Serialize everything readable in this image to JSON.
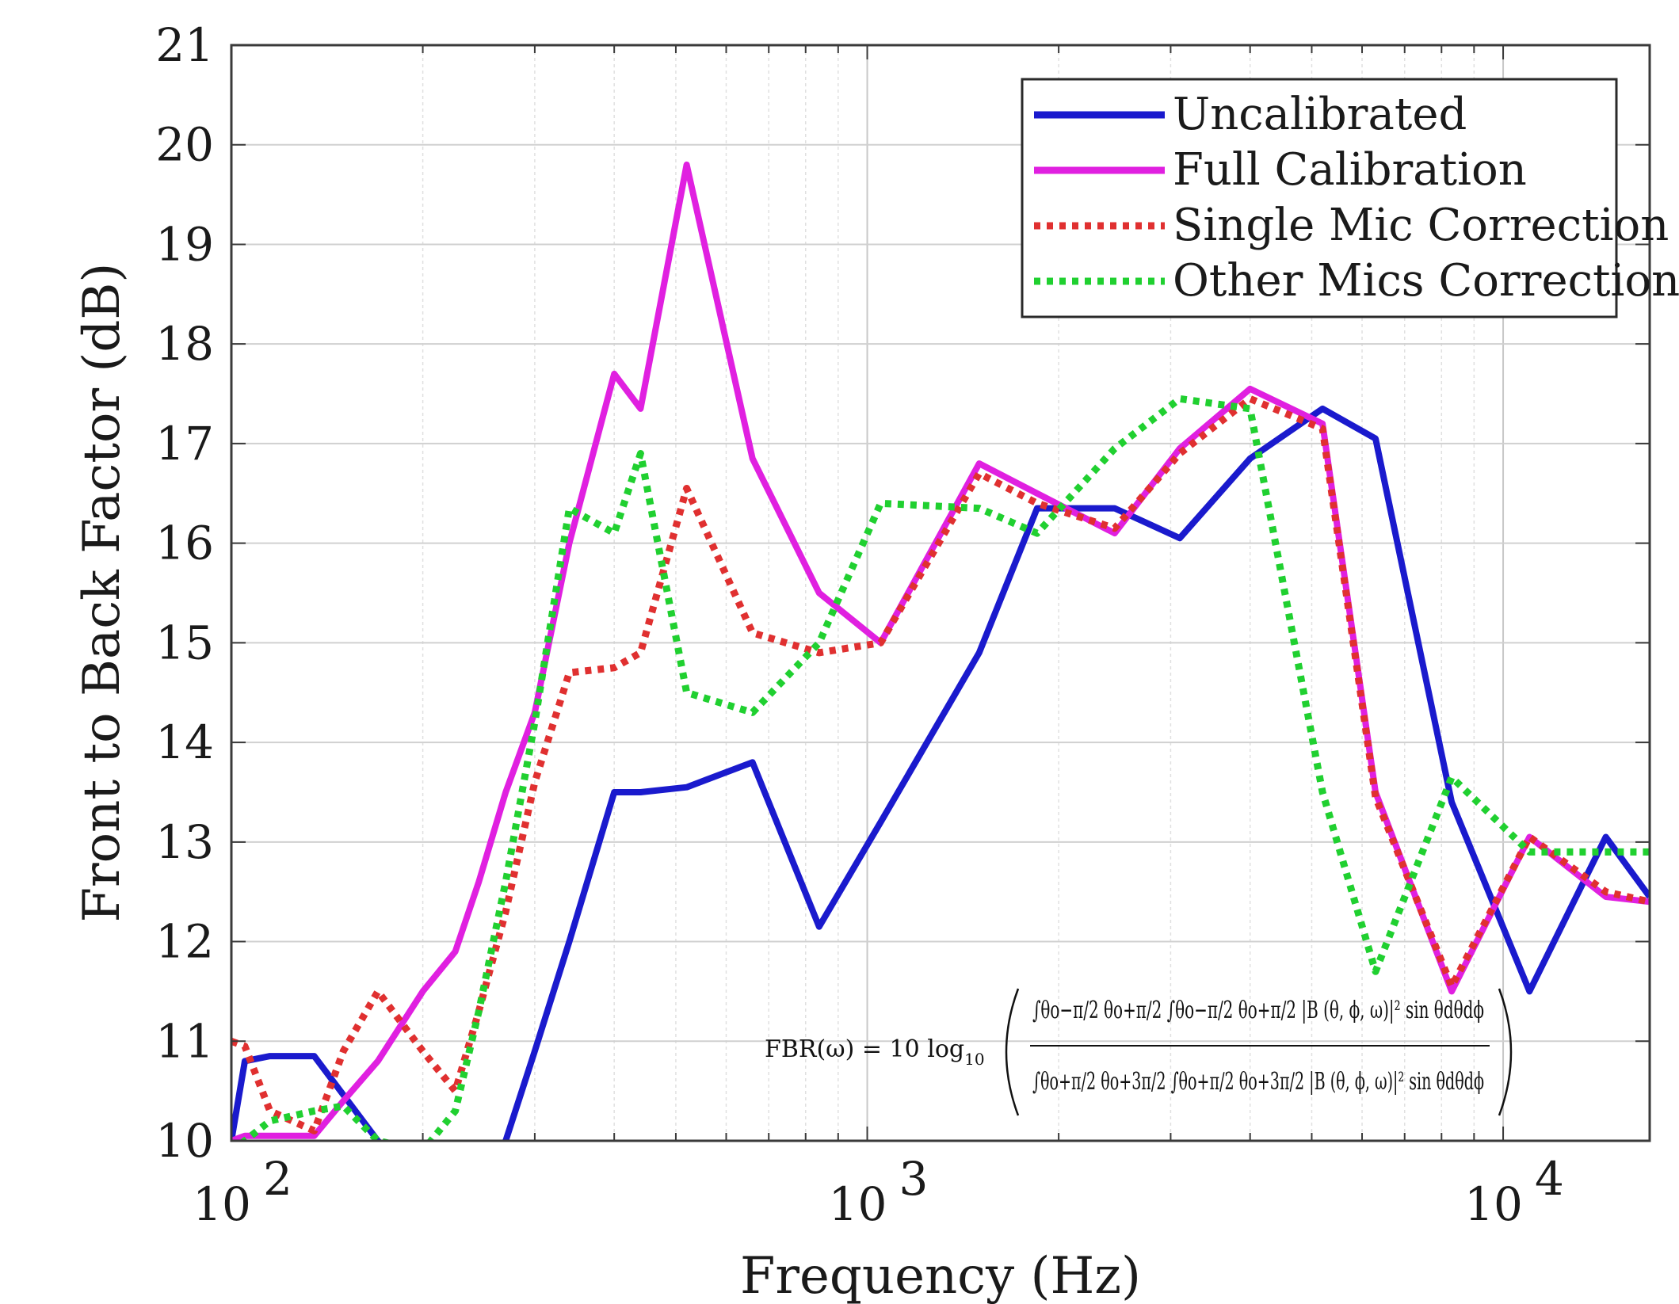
{
  "chart_data": {
    "type": "line",
    "xlabel": "Frequency (Hz)",
    "ylabel": "Front to Back Factor (dB)",
    "xscale": "log",
    "xlim": [
      100,
      17000
    ],
    "ylim": [
      10,
      21
    ],
    "grid": true,
    "legend_position": "top-right",
    "x_ticks": [
      {
        "value": 100,
        "base": "10",
        "exp": "2"
      },
      {
        "value": 1000,
        "base": "10",
        "exp": "3"
      },
      {
        "value": 10000,
        "base": "10",
        "exp": "4"
      }
    ],
    "y_ticks": [
      "10",
      "11",
      "12",
      "13",
      "14",
      "15",
      "16",
      "17",
      "18",
      "19",
      "20",
      "21"
    ],
    "series": [
      {
        "name": "Uncalibrated",
        "color": "#1a1acd",
        "style": "solid",
        "x": [
          100,
          105,
          115,
          135,
          170,
          190,
          205,
          225,
          245,
          270,
          300,
          340,
          400,
          440,
          520,
          660,
          840,
          1050,
          1500,
          1850,
          2450,
          3100,
          4000,
          5200,
          6300,
          8300,
          11000,
          14500,
          17000
        ],
        "y": [
          10.0,
          10.8,
          10.85,
          10.85,
          10.0,
          9.7,
          9.5,
          9.5,
          9.7,
          10.0,
          10.9,
          12.0,
          13.5,
          13.5,
          13.55,
          13.8,
          12.15,
          13.2,
          14.9,
          16.35,
          16.35,
          16.05,
          16.85,
          17.35,
          17.05,
          13.4,
          11.5,
          13.05,
          12.45
        ]
      },
      {
        "name": "Full Calibration",
        "color": "#e020e0",
        "style": "solid",
        "x": [
          100,
          105,
          115,
          135,
          150,
          170,
          200,
          225,
          245,
          270,
          300,
          340,
          400,
          440,
          520,
          660,
          840,
          1050,
          1500,
          1850,
          2450,
          3100,
          4000,
          5200,
          6300,
          8300,
          11000,
          14500,
          17000
        ],
        "y": [
          10.0,
          10.05,
          10.05,
          10.05,
          10.4,
          10.8,
          11.5,
          11.9,
          12.6,
          13.5,
          14.3,
          16.0,
          17.7,
          17.35,
          19.8,
          16.85,
          15.5,
          15.0,
          16.8,
          16.5,
          16.1,
          16.95,
          17.55,
          17.2,
          13.5,
          11.5,
          13.05,
          12.45,
          12.4
        ]
      },
      {
        "name": "Single Mic Correction",
        "color": "#e03030",
        "style": "dotted",
        "x": [
          100,
          105,
          115,
          135,
          150,
          170,
          200,
          225,
          245,
          270,
          300,
          340,
          400,
          440,
          520,
          660,
          840,
          1050,
          1500,
          1850,
          2450,
          3100,
          4000,
          5200,
          6300,
          8300,
          11000,
          14500,
          17000
        ],
        "y": [
          11.0,
          10.95,
          10.3,
          10.1,
          10.9,
          11.5,
          10.9,
          10.5,
          11.3,
          12.3,
          13.6,
          14.7,
          14.75,
          14.9,
          16.55,
          15.1,
          14.9,
          15.0,
          16.7,
          16.4,
          16.15,
          16.9,
          17.45,
          17.15,
          13.45,
          11.55,
          13.05,
          12.5,
          12.4
        ]
      },
      {
        "name": "Other Mics Correction",
        "color": "#20d030",
        "style": "dotted",
        "x": [
          100,
          105,
          115,
          135,
          150,
          170,
          200,
          225,
          245,
          270,
          300,
          340,
          400,
          440,
          520,
          660,
          840,
          1050,
          1500,
          1850,
          2450,
          3100,
          4000,
          5200,
          6300,
          8300,
          11000,
          14500,
          17000
        ],
        "y": [
          9.9,
          10.0,
          10.2,
          10.3,
          10.35,
          10.0,
          9.9,
          10.3,
          11.3,
          12.6,
          14.2,
          16.35,
          16.1,
          16.9,
          14.5,
          14.3,
          15.0,
          16.4,
          16.35,
          16.1,
          16.95,
          17.45,
          17.35,
          13.5,
          11.7,
          13.65,
          12.9,
          12.9,
          12.9
        ]
      }
    ],
    "annotation": {
      "lhs": "FBR(ω) = 10 log",
      "lhs_sub": "10",
      "numerator": "∫θo−π/2 θo+π/2 ∫θo−π/2 θo+π/2 |B (θ, ϕ, ω)|² sin θdθdϕ",
      "denominator": "∫θo+π/2 θo+3π/2 ∫θo+π/2 θo+3π/2 |B (θ, ϕ, ω)|² sin θdθdϕ"
    }
  }
}
